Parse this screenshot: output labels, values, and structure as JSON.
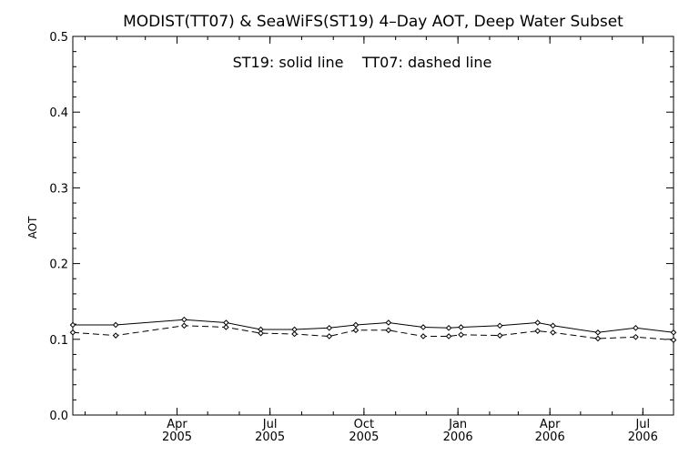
{
  "chart_data": {
    "type": "line",
    "title": "MODIST(TT07) & SeaWiFS(ST19) 4–Day AOT, Deep Water Subset",
    "annotation": "ST19: solid line    TT07: dashed line",
    "ylabel": "AOT",
    "xlabel": "",
    "ylim": [
      0.0,
      0.5
    ],
    "xlim": [
      "2004-12-20",
      "2006-07-31"
    ],
    "grid": false,
    "legend": "none",
    "y_ticks": [
      "0.0",
      "0.1",
      "0.2",
      "0.3",
      "0.4",
      "0.5"
    ],
    "x_ticks": [
      {
        "date": "2005-04-01",
        "month": "Apr",
        "year": "2005"
      },
      {
        "date": "2005-07-01",
        "month": "Jul",
        "year": "2005"
      },
      {
        "date": "2005-10-01",
        "month": "Oct",
        "year": "2005"
      },
      {
        "date": "2006-01-01",
        "month": "Jan",
        "year": "2006"
      },
      {
        "date": "2006-04-01",
        "month": "Apr",
        "year": "2006"
      },
      {
        "date": "2006-07-01",
        "month": "Jul",
        "year": "2006"
      }
    ],
    "series": [
      {
        "name": "ST19",
        "style": "solid",
        "points": [
          {
            "x": "2004-12-20",
            "y": 0.119
          },
          {
            "x": "2005-01-31",
            "y": 0.119
          },
          {
            "x": "2005-04-08",
            "y": 0.126
          },
          {
            "x": "2005-05-19",
            "y": 0.122
          },
          {
            "x": "2005-06-22",
            "y": 0.113
          },
          {
            "x": "2005-07-25",
            "y": 0.113
          },
          {
            "x": "2005-08-28",
            "y": 0.115
          },
          {
            "x": "2005-09-23",
            "y": 0.119
          },
          {
            "x": "2005-10-25",
            "y": 0.122
          },
          {
            "x": "2005-11-28",
            "y": 0.116
          },
          {
            "x": "2005-12-23",
            "y": 0.115
          },
          {
            "x": "2006-01-04",
            "y": 0.116
          },
          {
            "x": "2006-02-11",
            "y": 0.118
          },
          {
            "x": "2006-03-20",
            "y": 0.122
          },
          {
            "x": "2006-04-04",
            "y": 0.118
          },
          {
            "x": "2006-05-18",
            "y": 0.109
          },
          {
            "x": "2006-06-24",
            "y": 0.115
          },
          {
            "x": "2006-07-31",
            "y": 0.109
          }
        ]
      },
      {
        "name": "TT07",
        "style": "dashed",
        "points": [
          {
            "x": "2004-12-20",
            "y": 0.109
          },
          {
            "x": "2005-01-31",
            "y": 0.105
          },
          {
            "x": "2005-04-08",
            "y": 0.118
          },
          {
            "x": "2005-05-19",
            "y": 0.116
          },
          {
            "x": "2005-06-22",
            "y": 0.108
          },
          {
            "x": "2005-07-25",
            "y": 0.107
          },
          {
            "x": "2005-08-28",
            "y": 0.104
          },
          {
            "x": "2005-09-23",
            "y": 0.112
          },
          {
            "x": "2005-10-25",
            "y": 0.112
          },
          {
            "x": "2005-11-28",
            "y": 0.104
          },
          {
            "x": "2005-12-23",
            "y": 0.104
          },
          {
            "x": "2006-01-04",
            "y": 0.106
          },
          {
            "x": "2006-02-11",
            "y": 0.105
          },
          {
            "x": "2006-03-20",
            "y": 0.111
          },
          {
            "x": "2006-04-04",
            "y": 0.109
          },
          {
            "x": "2006-05-18",
            "y": 0.101
          },
          {
            "x": "2006-06-24",
            "y": 0.103
          },
          {
            "x": "2006-07-31",
            "y": 0.099
          }
        ]
      }
    ]
  }
}
